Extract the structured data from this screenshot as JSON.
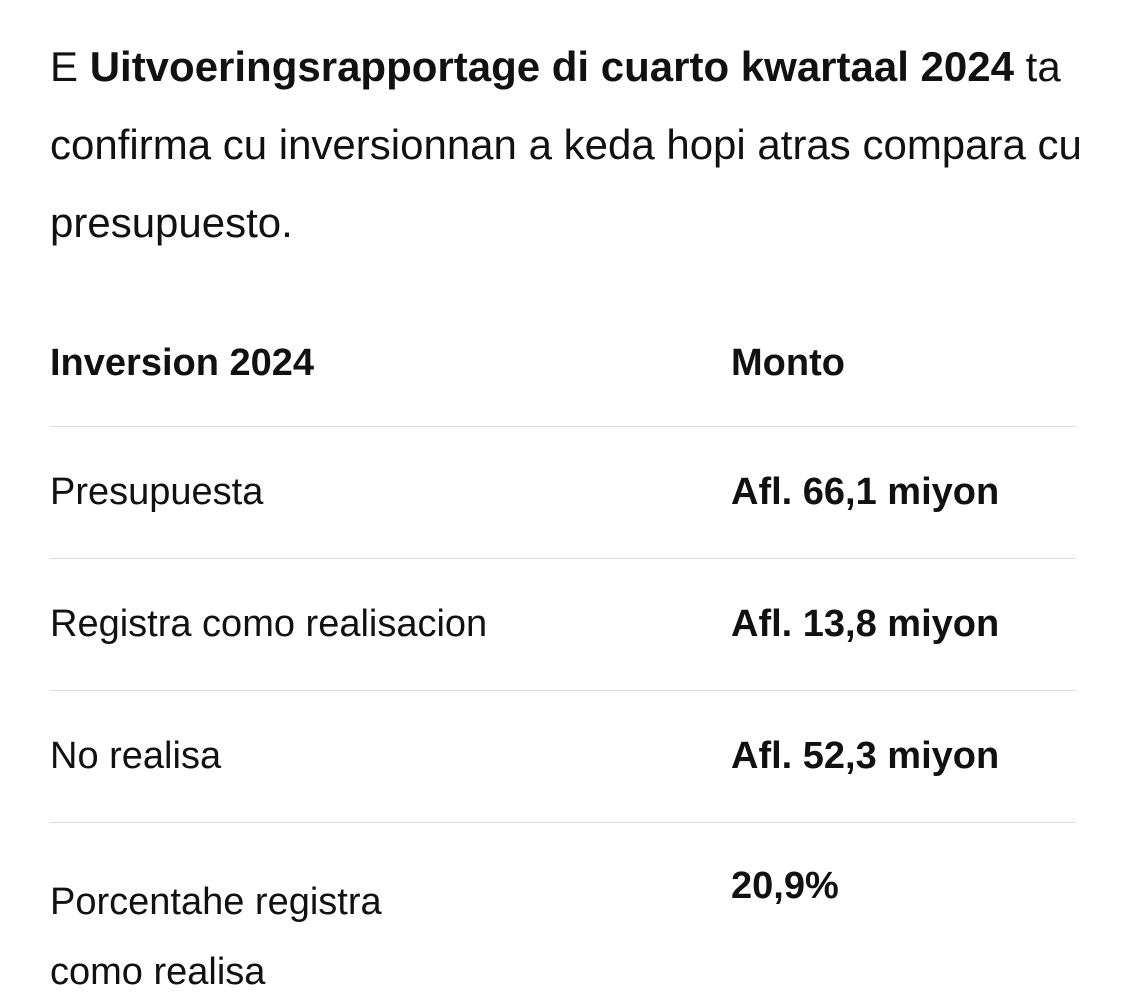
{
  "paragraph": {
    "before": "E",
    "bold": "Uitvoeringsrapportage di cuarto kwartaal 2024",
    "after": "ta confirma cu inversionnan a keda hopi atras compara cu presupuesto."
  },
  "table": {
    "header": [
      "Inversion 2024",
      "Monto"
    ],
    "rows": [
      [
        "Presupuesta",
        "Afl. 66,1 miyon"
      ],
      [
        "Registra como realisacion",
        "Afl. 13,8 miyon"
      ],
      [
        "No realisa",
        "Afl. 52,3 miyon"
      ],
      [
        "Porcentahe registra como realisa",
        "20,9%"
      ]
    ]
  }
}
